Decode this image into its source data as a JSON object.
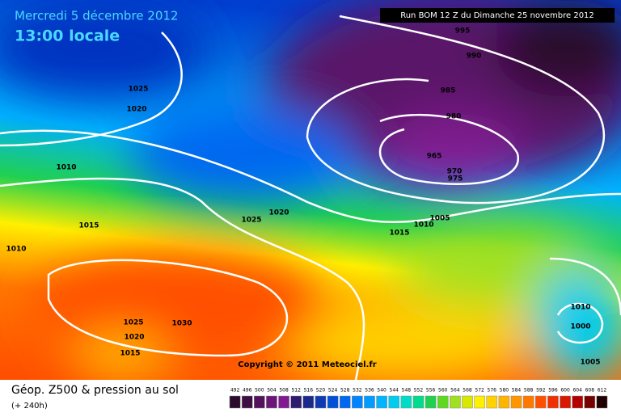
{
  "header": {
    "date": "Mercredi 5 décembre 2012",
    "time": "13:00 locale",
    "run": "Run BOM 12 Z du Dimanche 25 novembre 2012"
  },
  "isobar_labels": [
    995,
    990,
    985,
    980,
    965,
    970,
    975,
    1025,
    1020,
    1010,
    1015,
    1010,
    1025,
    1020,
    1005,
    1010,
    1015,
    1025,
    1030,
    1020,
    1015,
    1010,
    1000,
    1005
  ],
  "copyright": "Copyright © 2011 Meteociel.fr",
  "footer": {
    "title": "Géop. Z500 & pression au sol",
    "lead": "(+ 240h)"
  },
  "scale": {
    "values": [
      492,
      496,
      500,
      504,
      508,
      512,
      516,
      520,
      524,
      528,
      532,
      536,
      540,
      544,
      548,
      552,
      556,
      560,
      564,
      568,
      572,
      576,
      580,
      584,
      588,
      592,
      596,
      600,
      604,
      608,
      612
    ],
    "colors": [
      "#2b0b2b",
      "#3f0f43",
      "#55125c",
      "#6b1677",
      "#811a92",
      "#2e1a6e",
      "#1c2a8e",
      "#0e3ab4",
      "#0050d8",
      "#0068f0",
      "#0084ff",
      "#009cff",
      "#00b4ff",
      "#00ccf0",
      "#00dcc8",
      "#00dc8c",
      "#20d050",
      "#60d820",
      "#a0e020",
      "#d8e800",
      "#fff000",
      "#ffd200",
      "#ffb400",
      "#ff9600",
      "#ff7800",
      "#ff5000",
      "#f03000",
      "#d81800",
      "#b40000",
      "#780000",
      "#200000"
    ]
  }
}
